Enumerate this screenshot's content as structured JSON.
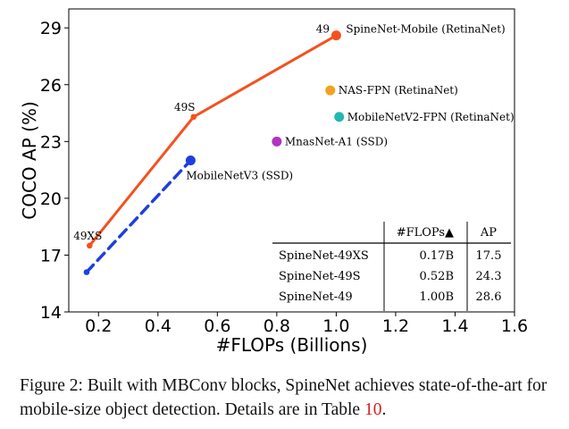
{
  "chart_data": {
    "type": "scatter",
    "xlabel": "#FLOPs (Billions)",
    "ylabel": "COCO AP (%)",
    "xlim": [
      0.1,
      1.6
    ],
    "ylim": [
      14,
      30
    ],
    "xticks": [
      0.2,
      0.4,
      0.6,
      0.8,
      1.0,
      1.2,
      1.4,
      1.6
    ],
    "xtick_labels": [
      "0.2",
      "0.4",
      "0.6",
      "0.8",
      "1.0",
      "1.2",
      "1.4",
      "1.6"
    ],
    "yticks": [
      14,
      17,
      20,
      23,
      26,
      29
    ],
    "ytick_labels": [
      "14",
      "17",
      "20",
      "23",
      "26",
      "29"
    ],
    "series": [
      {
        "kind": "solid-line",
        "color": "#f4511e",
        "points": [
          {
            "x": 0.17,
            "y": 17.5,
            "label": "49XS",
            "marker": "small"
          },
          {
            "x": 0.52,
            "y": 24.3,
            "label": "49S",
            "marker": "small"
          },
          {
            "x": 1.0,
            "y": 28.6,
            "label": "49",
            "marker": "large",
            "name": "SpineNet-Mobile (RetinaNet)"
          }
        ]
      },
      {
        "kind": "dashed-line",
        "color": "#1f3ee0",
        "points": [
          {
            "x": 0.16,
            "y": 16.1,
            "marker": "small"
          },
          {
            "x": 0.51,
            "y": 22.0,
            "marker": "large",
            "name": "MobileNetV3 (SSD)"
          }
        ]
      }
    ],
    "points": [
      {
        "x": 0.98,
        "y": 25.7,
        "name": "NAS-FPN (RetinaNet)",
        "color": "#f5a01e"
      },
      {
        "x": 1.01,
        "y": 24.3,
        "name": "MobileNetV2-FPN (RetinaNet)",
        "color": "#22b7b0"
      },
      {
        "x": 0.8,
        "y": 23.0,
        "name": "MnasNet-A1 (SSD)",
        "color": "#b233c2"
      }
    ],
    "inset_table": {
      "columns": [
        "",
        "#FLOPs▲",
        "AP"
      ],
      "rows": [
        [
          "SpineNet-49XS",
          "0.17B",
          "17.5"
        ],
        [
          "SpineNet-49S",
          "0.52B",
          "24.3"
        ],
        [
          "SpineNet-49",
          "1.00B",
          "28.6"
        ]
      ]
    }
  },
  "caption": {
    "text": "Figure 2: Built with MBConv blocks, SpineNet achieves state-of-the-art for mobile-size object detection. Details are in Table ",
    "ref": "10",
    "end": "."
  }
}
